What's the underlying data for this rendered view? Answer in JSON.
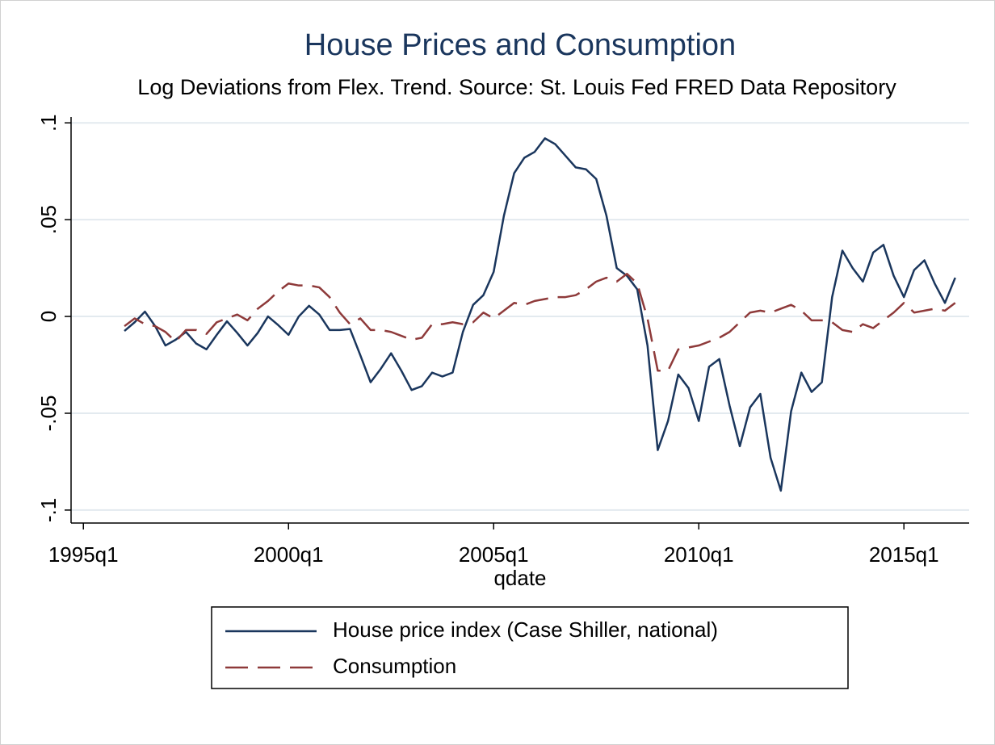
{
  "chart_data": {
    "type": "line",
    "title": "House Prices and Consumption",
    "subtitle": "Log Deviations from Flex. Trend. Source: St. Louis Fed FRED Data Repository",
    "x_label": "qdate",
    "x": [
      1996,
      1996.25,
      1996.5,
      1996.75,
      1997,
      1997.25,
      1997.5,
      1997.75,
      1998,
      1998.25,
      1998.5,
      1998.75,
      1999,
      1999.25,
      1999.5,
      1999.75,
      2000,
      2000.25,
      2000.5,
      2000.75,
      2001,
      2001.25,
      2001.5,
      2001.75,
      2002,
      2002.25,
      2002.5,
      2002.75,
      2003,
      2003.25,
      2003.5,
      2003.75,
      2004,
      2004.25,
      2004.5,
      2004.75,
      2005,
      2005.25,
      2005.5,
      2005.75,
      2006,
      2006.25,
      2006.5,
      2006.75,
      2007,
      2007.25,
      2007.5,
      2007.75,
      2008,
      2008.25,
      2008.5,
      2008.75,
      2009,
      2009.25,
      2009.5,
      2009.75,
      2010,
      2010.25,
      2010.5,
      2010.75,
      2011,
      2011.25,
      2011.5,
      2011.75,
      2012,
      2012.25,
      2012.5,
      2012.75,
      2013,
      2013.25,
      2013.5,
      2013.75,
      2014,
      2014.25,
      2014.5,
      2014.75,
      2015,
      2015.25,
      2015.5,
      2015.75,
      2016,
      2016.25
    ],
    "series": [
      {
        "name": "House price index (Case Shiller, national)",
        "color": "#1a365d",
        "linestyle": "solid",
        "values": [
          -0.0075,
          -0.003,
          0.0025,
          -0.005,
          -0.015,
          -0.012,
          -0.008,
          -0.014,
          -0.017,
          -0.0095,
          -0.0025,
          -0.0085,
          -0.015,
          -0.0085,
          0,
          -0.0045,
          -0.0095,
          0,
          0.0055,
          0.001,
          -0.007,
          -0.007,
          -0.0065,
          -0.02,
          -0.034,
          -0.027,
          -0.019,
          -0.028,
          -0.038,
          -0.036,
          -0.029,
          -0.031,
          -0.029,
          -0.008,
          0.006,
          0.011,
          0.023,
          0.052,
          0.074,
          0.082,
          0.085,
          0.092,
          0.089,
          0.083,
          0.077,
          0.076,
          0.071,
          0.052,
          0.025,
          0.021,
          0.014,
          -0.015,
          -0.069,
          -0.054,
          -0.03,
          -0.037,
          -0.054,
          -0.026,
          -0.022,
          -0.046,
          -0.067,
          -0.047,
          -0.04,
          -0.073,
          -0.09,
          -0.049,
          -0.029,
          -0.039,
          -0.034,
          0.01,
          0.034,
          0.025,
          0.018,
          0.033,
          0.037,
          0.021,
          0.01,
          0.024,
          0.029,
          0.017,
          0.007,
          0.02
        ]
      },
      {
        "name": "Consumption",
        "color": "#8e3a3a",
        "linestyle": "dash",
        "values": [
          -0.005,
          -0.001,
          -0.004,
          -0.005,
          -0.008,
          -0.013,
          -0.007,
          -0.007,
          -0.009,
          -0.003,
          -0.001,
          0.001,
          -0.002,
          0.004,
          0.008,
          0.013,
          0.017,
          0.016,
          0.016,
          0.015,
          0.01,
          0.002,
          -0.004,
          -0.001,
          -0.007,
          -0.007,
          -0.008,
          -0.01,
          -0.012,
          -0.011,
          -0.004,
          -0.004,
          -0.003,
          -0.004,
          -0.003,
          0.002,
          -0.001,
          0.003,
          0.007,
          0.006,
          0.008,
          0.009,
          0.01,
          0.01,
          0.011,
          0.014,
          0.018,
          0.02,
          0.018,
          0.022,
          0.017,
          -0.001,
          -0.028,
          -0.028,
          -0.017,
          -0.016,
          -0.015,
          -0.013,
          -0.011,
          -0.008,
          -0.003,
          0.002,
          0.003,
          0.002,
          0.004,
          0.006,
          0.003,
          -0.002,
          -0.002,
          -0.003,
          -0.007,
          -0.008,
          -0.004,
          -0.006,
          -0.002,
          0.002,
          0.007,
          0.002,
          0.003,
          0.004,
          0.003,
          0.007
        ]
      }
    ],
    "xlim": [
      1994.7,
      2016.59
    ],
    "xticks": [
      {
        "value": 1995,
        "label": "1995q1"
      },
      {
        "value": 2000,
        "label": "2000q1"
      },
      {
        "value": 2005,
        "label": "2005q1"
      },
      {
        "value": 2010,
        "label": "2010q1"
      },
      {
        "value": 2015,
        "label": "2015q1"
      }
    ],
    "ylim": [
      -0.1067,
      0.103
    ],
    "yticks": [
      {
        "value": -0.1,
        "label": "-.1"
      },
      {
        "value": -0.05,
        "label": "-.05"
      },
      0,
      {
        "value": 0.05,
        "label": ".05"
      },
      {
        "value": 0.1,
        "label": ".1"
      }
    ],
    "grid": true,
    "legend": "bottom"
  }
}
